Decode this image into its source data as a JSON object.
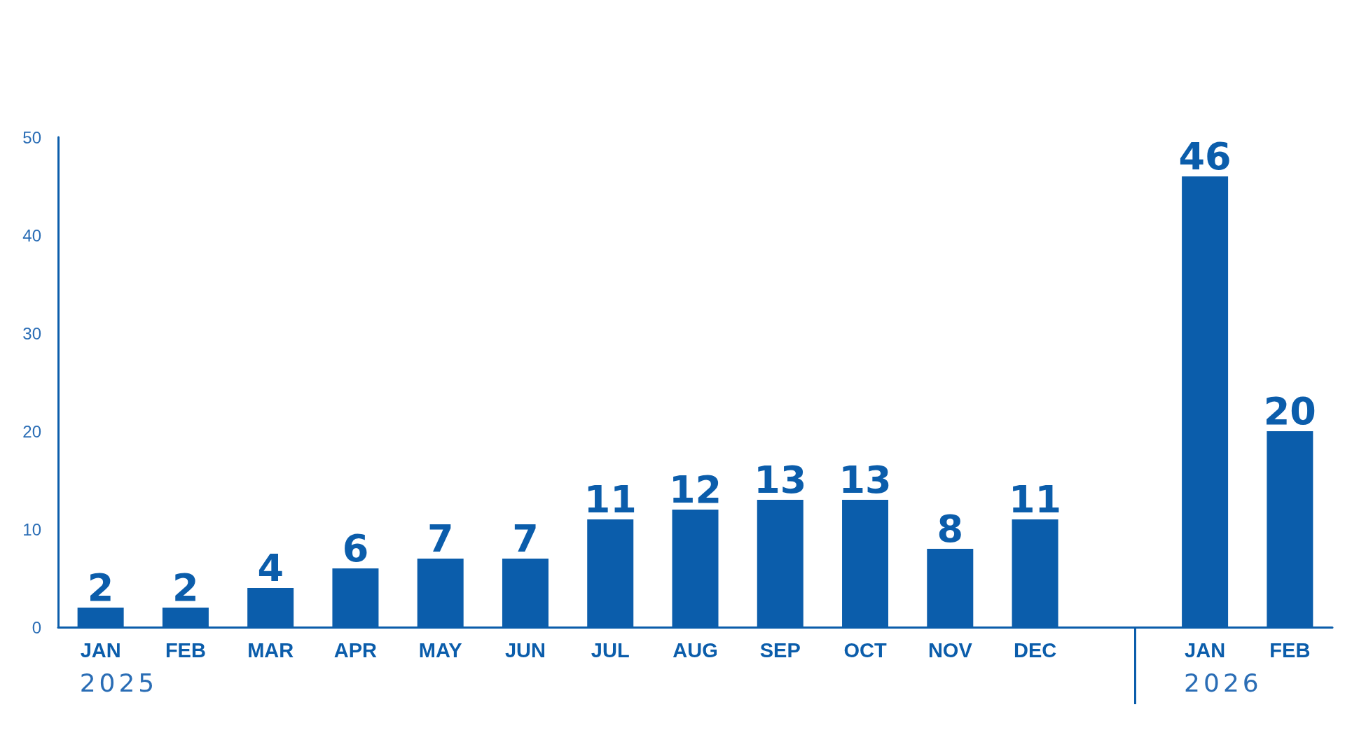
{
  "chart_data": {
    "type": "bar",
    "categories": [
      "JAN",
      "FEB",
      "MAR",
      "APR",
      "MAY",
      "JUN",
      "JUL",
      "AUG",
      "SEP",
      "OCT",
      "NOV",
      "DEC",
      null,
      "JAN",
      "FEB"
    ],
    "values": [
      2,
      2,
      4,
      6,
      7,
      7,
      11,
      12,
      13,
      13,
      8,
      11,
      null,
      46,
      20
    ],
    "color": "#0b5dab",
    "data_labels": true,
    "ylim": [
      0,
      50
    ],
    "yticks": [
      0,
      10,
      20,
      30,
      40,
      50
    ],
    "annotations": [
      "2025",
      "2026"
    ]
  }
}
